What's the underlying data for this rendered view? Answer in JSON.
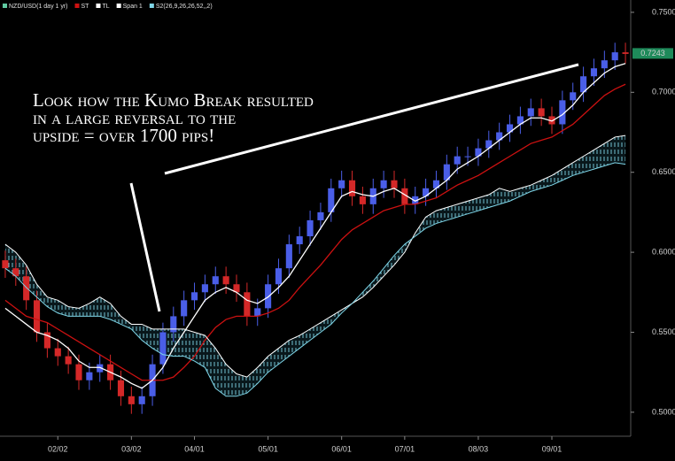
{
  "chart_data": {
    "type": "candlestick",
    "title": "NZD/USD(1 day 1 yr)",
    "title_color": "#5fc8a0",
    "annotation": [
      "Look how the Kumo Break resulted",
      "in a large reversal to the",
      "upside = over 1700 pips!"
    ],
    "categories": [
      null,
      null,
      null,
      null,
      null,
      "02/02",
      null,
      null,
      null,
      null,
      null,
      null,
      "03/02",
      null,
      null,
      null,
      null,
      null,
      "04/01",
      null,
      null,
      null,
      null,
      null,
      null,
      "05/01",
      null,
      null,
      null,
      null,
      null,
      null,
      "06/01",
      null,
      null,
      null,
      null,
      null,
      "07/01",
      null,
      null,
      null,
      null,
      null,
      null,
      "08/03",
      null,
      null,
      null,
      null,
      null,
      null,
      "09/01",
      null,
      null,
      null,
      null,
      null,
      null,
      null
    ],
    "open": [
      0.595,
      0.59,
      0.585,
      0.57,
      0.55,
      0.54,
      0.535,
      0.53,
      0.52,
      0.525,
      0.53,
      0.52,
      0.51,
      0.505,
      0.51,
      0.53,
      0.55,
      0.56,
      0.57,
      0.575,
      0.58,
      0.585,
      0.58,
      0.575,
      0.56,
      0.565,
      0.58,
      0.59,
      0.605,
      0.61,
      0.62,
      0.625,
      0.64,
      0.645,
      0.635,
      0.63,
      0.64,
      0.645,
      0.64,
      0.63,
      0.635,
      0.64,
      0.645,
      0.655,
      0.66,
      0.66,
      0.665,
      0.67,
      0.675,
      0.68,
      0.685,
      0.69,
      0.685,
      0.68,
      0.695,
      0.7,
      0.71,
      0.715,
      0.72,
      0.725
    ],
    "high": [
      0.601,
      0.596,
      0.591,
      0.576,
      0.556,
      0.546,
      0.541,
      0.536,
      0.531,
      0.536,
      0.536,
      0.526,
      0.516,
      0.516,
      0.536,
      0.556,
      0.566,
      0.576,
      0.581,
      0.586,
      0.591,
      0.591,
      0.586,
      0.581,
      0.571,
      0.586,
      0.596,
      0.611,
      0.616,
      0.626,
      0.631,
      0.646,
      0.651,
      0.651,
      0.641,
      0.646,
      0.651,
      0.651,
      0.646,
      0.641,
      0.646,
      0.651,
      0.661,
      0.666,
      0.666,
      0.671,
      0.676,
      0.681,
      0.686,
      0.691,
      0.696,
      0.696,
      0.691,
      0.701,
      0.706,
      0.716,
      0.721,
      0.726,
      0.731,
      0.731
    ],
    "low": [
      0.584,
      0.579,
      0.564,
      0.544,
      0.534,
      0.529,
      0.524,
      0.514,
      0.514,
      0.519,
      0.514,
      0.504,
      0.499,
      0.499,
      0.504,
      0.524,
      0.544,
      0.554,
      0.564,
      0.569,
      0.574,
      0.574,
      0.569,
      0.554,
      0.554,
      0.559,
      0.574,
      0.584,
      0.599,
      0.604,
      0.614,
      0.619,
      0.634,
      0.629,
      0.624,
      0.624,
      0.634,
      0.634,
      0.624,
      0.624,
      0.629,
      0.634,
      0.639,
      0.649,
      0.654,
      0.654,
      0.659,
      0.664,
      0.669,
      0.674,
      0.679,
      0.679,
      0.674,
      0.674,
      0.689,
      0.694,
      0.704,
      0.709,
      0.714,
      0.718
    ],
    "close": [
      0.59,
      0.585,
      0.57,
      0.55,
      0.54,
      0.535,
      0.53,
      0.52,
      0.525,
      0.53,
      0.52,
      0.51,
      0.505,
      0.51,
      0.53,
      0.55,
      0.56,
      0.57,
      0.575,
      0.58,
      0.585,
      0.58,
      0.575,
      0.56,
      0.565,
      0.58,
      0.59,
      0.605,
      0.61,
      0.62,
      0.625,
      0.64,
      0.645,
      0.635,
      0.63,
      0.64,
      0.645,
      0.64,
      0.63,
      0.635,
      0.64,
      0.645,
      0.655,
      0.66,
      0.66,
      0.665,
      0.67,
      0.675,
      0.68,
      0.685,
      0.69,
      0.685,
      0.68,
      0.695,
      0.7,
      0.71,
      0.715,
      0.72,
      0.725,
      0.724
    ],
    "up_color": "#4a5ee8",
    "down_color": "#d42828",
    "series": [
      {
        "name": "ST",
        "color": "#cc1111",
        "values": [
          0.57,
          0.565,
          0.56,
          0.558,
          0.556,
          0.552,
          0.548,
          0.544,
          0.54,
          0.536,
          0.532,
          0.528,
          0.524,
          0.52,
          0.52,
          0.52,
          0.522,
          0.528,
          0.535,
          0.545,
          0.553,
          0.558,
          0.56,
          0.56,
          0.56,
          0.562,
          0.565,
          0.57,
          0.578,
          0.585,
          0.592,
          0.6,
          0.608,
          0.614,
          0.618,
          0.622,
          0.626,
          0.628,
          0.63,
          0.63,
          0.632,
          0.634,
          0.638,
          0.642,
          0.645,
          0.648,
          0.652,
          0.656,
          0.66,
          0.664,
          0.668,
          0.67,
          0.672,
          0.676,
          0.68,
          0.686,
          0.692,
          0.698,
          0.702,
          0.705
        ]
      },
      {
        "name": "TL",
        "color": "#ffffff",
        "values": [
          0.565,
          0.56,
          0.555,
          0.55,
          0.548,
          0.545,
          0.54,
          0.532,
          0.528,
          0.528,
          0.525,
          0.522,
          0.518,
          0.515,
          0.52,
          0.528,
          0.54,
          0.55,
          0.56,
          0.57,
          0.575,
          0.578,
          0.575,
          0.57,
          0.568,
          0.572,
          0.578,
          0.585,
          0.595,
          0.605,
          0.615,
          0.625,
          0.635,
          0.638,
          0.636,
          0.635,
          0.638,
          0.64,
          0.636,
          0.632,
          0.635,
          0.64,
          0.645,
          0.652,
          0.656,
          0.66,
          0.665,
          0.67,
          0.675,
          0.68,
          0.684,
          0.684,
          0.682,
          0.686,
          0.692,
          0.7,
          0.706,
          0.712,
          0.716,
          0.718
        ]
      },
      {
        "name": "Span 1",
        "color": "#ffffff",
        "values": [
          0.605,
          0.6,
          0.592,
          0.58,
          0.572,
          0.57,
          0.566,
          0.565,
          0.568,
          0.572,
          0.568,
          0.56,
          0.555,
          0.555,
          0.552,
          0.552,
          0.552,
          0.552,
          0.55,
          0.548,
          0.54,
          0.53,
          0.524,
          0.522,
          0.528,
          0.535,
          0.54,
          0.545,
          0.548,
          0.552,
          0.556,
          0.56,
          0.564,
          0.568,
          0.572,
          0.578,
          0.585,
          0.592,
          0.6,
          0.612,
          0.622,
          0.626,
          0.628,
          0.63,
          0.632,
          0.634,
          0.636,
          0.64,
          0.638,
          0.64,
          0.642,
          0.645,
          0.648,
          0.652,
          0.656,
          0.66,
          0.664,
          0.668,
          0.672,
          0.673
        ]
      },
      {
        "name": "S2(26,9,26,26,52,,2)",
        "color": "#7fd6e8",
        "values": [
          0.59,
          0.585,
          0.578,
          0.572,
          0.566,
          0.562,
          0.56,
          0.56,
          0.56,
          0.56,
          0.558,
          0.555,
          0.552,
          0.545,
          0.54,
          0.536,
          0.535,
          0.535,
          0.532,
          0.528,
          0.515,
          0.51,
          0.51,
          0.512,
          0.518,
          0.525,
          0.53,
          0.535,
          0.54,
          0.545,
          0.55,
          0.555,
          0.562,
          0.568,
          0.575,
          0.582,
          0.59,
          0.598,
          0.605,
          0.61,
          0.615,
          0.618,
          0.62,
          0.622,
          0.624,
          0.626,
          0.628,
          0.63,
          0.632,
          0.635,
          0.638,
          0.64,
          0.642,
          0.645,
          0.648,
          0.65,
          0.652,
          0.654,
          0.656,
          0.655
        ]
      }
    ],
    "ylim": [
      0.485,
      0.7577
    ],
    "yticks": [
      {
        "value": 0.5,
        "label": "0.5000"
      },
      {
        "value": 0.55,
        "label": "0.5500"
      },
      {
        "value": 0.6,
        "label": "0.6000"
      },
      {
        "value": 0.65,
        "label": "0.6500"
      },
      {
        "value": 0.7,
        "label": "0.7000"
      },
      {
        "value": 0.75,
        "label": "0.7500"
      }
    ],
    "last_price": 0.7243,
    "last_price_color": "#1e8a5a"
  }
}
